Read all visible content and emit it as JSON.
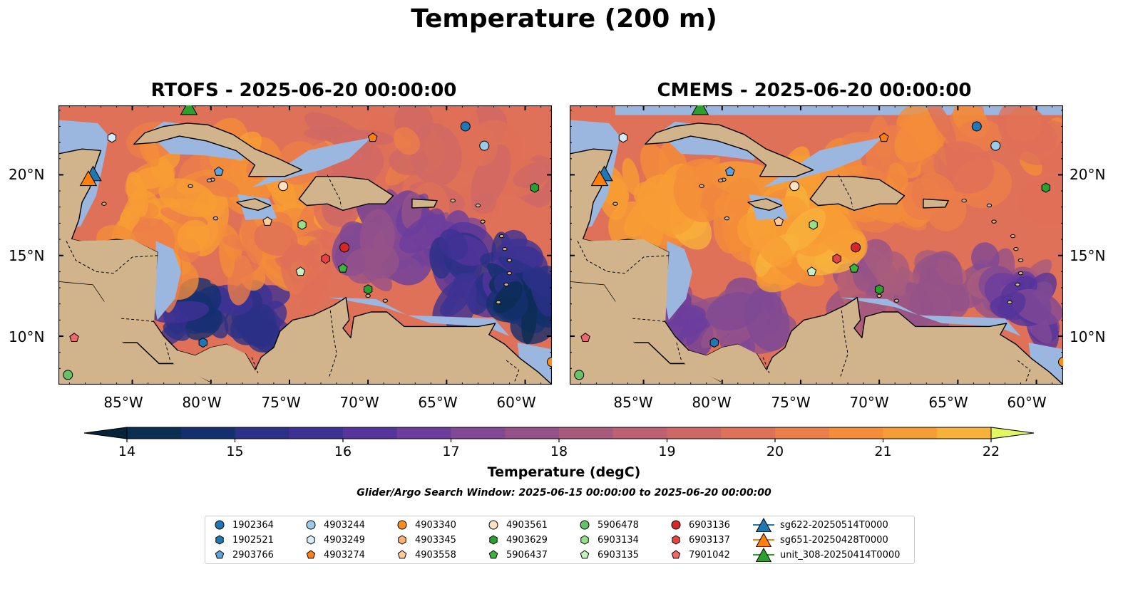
{
  "figure": {
    "title": "Temperature (200 m)",
    "panels": [
      {
        "title": "RTOFS - 2025-06-20 00:00:00",
        "model": "RTOFS"
      },
      {
        "title": "CMEMS - 2025-06-20 00:00:00",
        "model": "CMEMS"
      }
    ],
    "lat_ticks": [
      "20°N",
      "15°N",
      "10°N"
    ],
    "lon_ticks": [
      "85°W",
      "80°W",
      "75°W",
      "70°W",
      "65°W",
      "60°W"
    ],
    "extent": {
      "lon": [
        -89.7,
        -58.3
      ],
      "lat": [
        7.0,
        24.3
      ]
    },
    "colorbar": {
      "label": "Temperature (degC)",
      "min": 14,
      "max": 22,
      "step": 0.5,
      "extend": "both",
      "ticks": [
        "14",
        "15",
        "16",
        "17",
        "18",
        "19",
        "20",
        "21",
        "22"
      ]
    },
    "search_window": "Glider/Argo Search Window: 2025-06-15 00:00:00 to 2025-06-20 00:00:00",
    "colors": {
      "land": "#d2b48c",
      "shelf": "#9bb7e0",
      "ocean_deep": "#0b2740",
      "coastline": "#000000"
    }
  },
  "legend": [
    {
      "label": "1902364",
      "marker": "circle",
      "color": "#1f77b4"
    },
    {
      "label": "1902521",
      "marker": "hexagon",
      "color": "#1f77b4"
    },
    {
      "label": "2903766",
      "marker": "pentagon",
      "color": "#5fa2dd"
    },
    {
      "label": "4903244",
      "marker": "circle",
      "color": "#9ecae9"
    },
    {
      "label": "4903249",
      "marker": "hexagon",
      "color": "#d6eaf8"
    },
    {
      "label": "4903274",
      "marker": "pentagon",
      "color": "#ff7f0e"
    },
    {
      "label": "4903340",
      "marker": "circle",
      "color": "#ff8c1a"
    },
    {
      "label": "4903345",
      "marker": "hexagon",
      "color": "#ffb070"
    },
    {
      "label": "4903558",
      "marker": "pentagon",
      "color": "#ffcc99"
    },
    {
      "label": "4903561",
      "marker": "circle",
      "color": "#ffe0c2"
    },
    {
      "label": "4903629",
      "marker": "hexagon",
      "color": "#2ca02c"
    },
    {
      "label": "5906437",
      "marker": "pentagon",
      "color": "#3cb33c"
    },
    {
      "label": "5906478",
      "marker": "circle",
      "color": "#66c266"
    },
    {
      "label": "6903134",
      "marker": "hexagon",
      "color": "#98df8a"
    },
    {
      "label": "6903135",
      "marker": "pentagon",
      "color": "#c8f0c0"
    },
    {
      "label": "6903136",
      "marker": "circle",
      "color": "#d62728"
    },
    {
      "label": "6903137",
      "marker": "hexagon",
      "color": "#e84343"
    },
    {
      "label": "7901042",
      "marker": "pentagon",
      "color": "#f0686a"
    },
    {
      "label": "sg622-20250514T0000",
      "marker": "triangle-line",
      "color": "#1f77b4"
    },
    {
      "label": "sg651-20250428T0000",
      "marker": "triangle-line",
      "color": "#ff7f0e"
    },
    {
      "label": "unit_308-20250414T0000",
      "marker": "triangle-line",
      "color": "#2ca02c"
    }
  ],
  "observations": [
    {
      "id": "1902364",
      "lon": -63.8,
      "lat": 23.0
    },
    {
      "id": "4903244",
      "lon": -62.6,
      "lat": 21.8
    },
    {
      "id": "4903274",
      "lon": -69.7,
      "lat": 22.3
    },
    {
      "id": "4903249",
      "lon": -86.3,
      "lat": 22.3
    },
    {
      "id": "2903766",
      "lon": -79.5,
      "lat": 20.2
    },
    {
      "id": "4903561",
      "lon": -75.4,
      "lat": 19.3
    },
    {
      "id": "4903629",
      "lon": -59.4,
      "lat": 19.2
    },
    {
      "id": "4903558",
      "lon": -76.4,
      "lat": 17.1
    },
    {
      "id": "6903134",
      "lon": -74.2,
      "lat": 16.9
    },
    {
      "id": "6903136",
      "lon": -71.5,
      "lat": 15.5
    },
    {
      "id": "6903137",
      "lon": -72.7,
      "lat": 14.8
    },
    {
      "id": "5906437",
      "lon": -71.6,
      "lat": 14.2
    },
    {
      "id": "6903135",
      "lon": -74.3,
      "lat": 14.0
    },
    {
      "id": "4903629",
      "lon": -70.0,
      "lat": 12.9
    },
    {
      "id": "7901042",
      "lon": -88.7,
      "lat": 9.9
    },
    {
      "id": "1902521",
      "lon": -80.5,
      "lat": 9.6
    },
    {
      "id": "5906478",
      "lon": -89.1,
      "lat": 7.6
    },
    {
      "id": "4903340",
      "lon": -58.3,
      "lat": 8.4
    }
  ],
  "gliders": [
    {
      "id": "sg622-20250514T0000",
      "lon": -87.5,
      "lat": 20.0
    },
    {
      "id": "sg651-20250428T0000",
      "lon": -87.8,
      "lat": 19.7
    },
    {
      "id": "unit_308-20250414T0000",
      "lon": -81.4,
      "lat": 24.1
    }
  ]
}
